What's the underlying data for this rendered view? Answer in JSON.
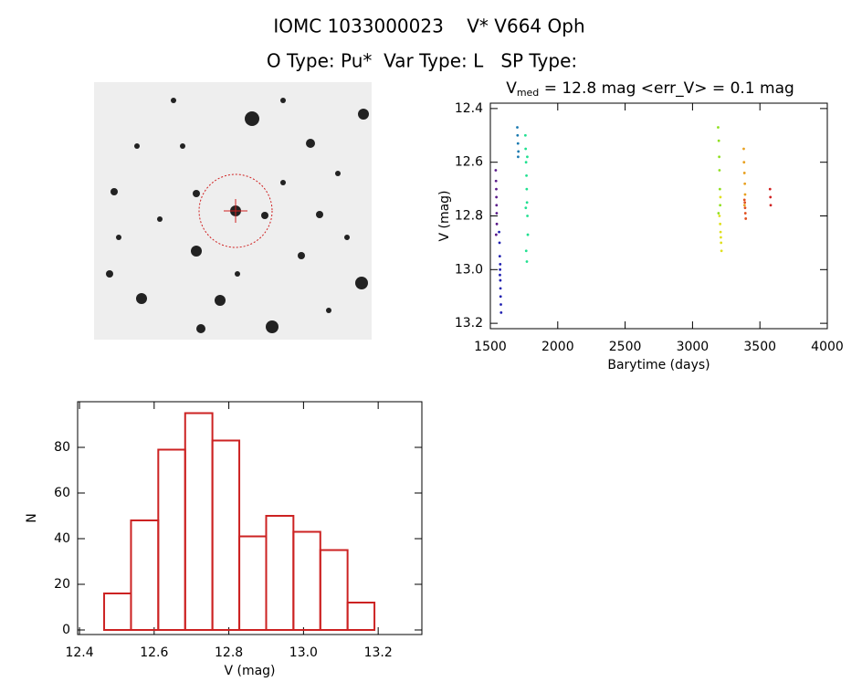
{
  "header": {
    "title": "IOMC 1033000023    V* V664 Oph",
    "subtitle": "O Type: Pu*  Var Type: L   SP Type:"
  },
  "chart_data": [
    {
      "type": "scatter",
      "title": "V",
      "title_subscript": "med",
      "title_rest": " = 12.8 mag <err_V> = 0.1 mag",
      "x_label": "Barytime (days)",
      "y_label": "V (mag)",
      "xlim": [
        1500,
        4000
      ],
      "xticks": [
        1500,
        2000,
        2500,
        3000,
        3500,
        4000
      ],
      "ylim": [
        13.22,
        12.38
      ],
      "inverted_y": true,
      "yticks": [
        12.4,
        12.6,
        12.8,
        {
          "value": 13.0,
          "label": "13.0"
        },
        13.2
      ],
      "series": [
        {
          "color": "#5a1a8a",
          "x": [
            1540,
            1542,
            1544,
            1545,
            1546,
            1547,
            1548,
            1543
          ],
          "values": [
            12.63,
            12.67,
            12.7,
            12.73,
            12.76,
            12.79,
            12.83,
            12.87
          ]
        },
        {
          "color": "#2020b0",
          "x": [
            1565,
            1568,
            1570,
            1572,
            1574,
            1575,
            1576,
            1578,
            1580,
            1573,
            1571
          ],
          "values": [
            12.86,
            12.9,
            12.95,
            13.0,
            13.04,
            13.07,
            13.1,
            13.13,
            13.16,
            12.98,
            13.02
          ]
        },
        {
          "color": "#1a7ab0",
          "x": [
            1700,
            1702,
            1705,
            1708,
            1706
          ],
          "values": [
            12.47,
            12.5,
            12.53,
            12.56,
            12.58
          ]
        },
        {
          "color": "#20e090",
          "x": [
            1760,
            1762,
            1765,
            1768,
            1770,
            1772,
            1775,
            1778,
            1766,
            1771,
            1774,
            1763
          ],
          "values": [
            12.5,
            12.55,
            12.6,
            12.65,
            12.7,
            12.75,
            12.8,
            12.87,
            12.93,
            12.97,
            12.58,
            12.77
          ]
        },
        {
          "color": "#90e020",
          "x": [
            3190,
            3195,
            3198,
            3200,
            3203,
            3205,
            3193
          ],
          "values": [
            12.47,
            12.52,
            12.58,
            12.63,
            12.7,
            12.76,
            12.79
          ]
        },
        {
          "color": "#e0e020",
          "x": [
            3200,
            3205,
            3208,
            3210,
            3212,
            3215,
            3207
          ],
          "values": [
            12.8,
            12.83,
            12.86,
            12.88,
            12.9,
            12.93,
            12.73
          ]
        },
        {
          "color": "#e8a020",
          "x": [
            3380,
            3382,
            3385,
            3388,
            3390,
            3386
          ],
          "values": [
            12.55,
            12.6,
            12.64,
            12.68,
            12.72,
            12.76
          ]
        },
        {
          "color": "#e05020",
          "x": [
            3385,
            3390,
            3392,
            3395,
            3388
          ],
          "values": [
            12.74,
            12.77,
            12.79,
            12.81,
            12.75
          ]
        },
        {
          "color": "#d02020",
          "x": [
            3575,
            3578,
            3580
          ],
          "values": [
            12.7,
            12.73,
            12.76
          ]
        }
      ]
    },
    {
      "type": "histogram",
      "x_label": "V (mag)",
      "y_label": "N",
      "color": "#cc2222",
      "bins": [
        12.466,
        12.538,
        12.611,
        12.683,
        12.756,
        12.828,
        12.9,
        12.973,
        13.045,
        13.118,
        13.19
      ],
      "values": [
        16,
        48,
        79,
        95,
        83,
        41,
        50,
        43,
        35,
        12
      ],
      "xlim": [
        12.395,
        13.317
      ],
      "xticks": [
        12.4,
        12.6,
        12.8,
        {
          "value": 13.0,
          "label": "13.0"
        },
        13.2
      ],
      "ylim": [
        -2,
        100
      ],
      "yticks": [
        0,
        20,
        40,
        60,
        80
      ]
    }
  ]
}
